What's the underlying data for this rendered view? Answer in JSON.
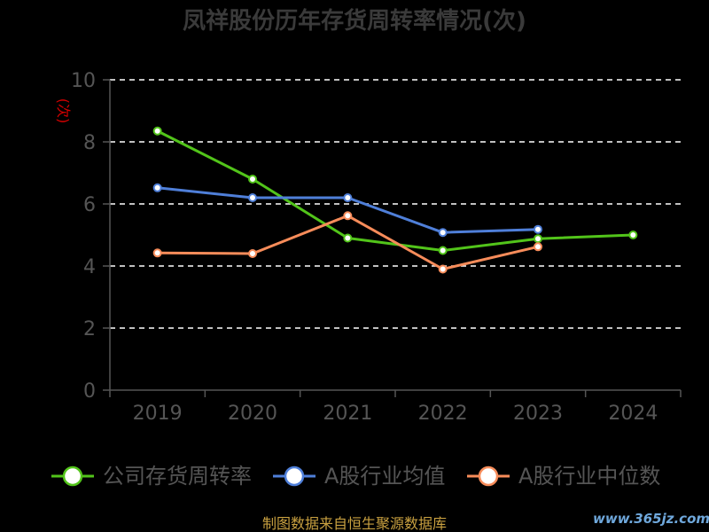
{
  "chart_data": {
    "type": "line",
    "title": "凤祥股份历年存货周转率情况(次)",
    "ylabel": "(次)",
    "xlabel": "",
    "categories": [
      "2019",
      "2020",
      "2021",
      "2022",
      "2023",
      "2024"
    ],
    "ylim": [
      0,
      10
    ],
    "yticks": [
      0,
      2,
      4,
      6,
      8,
      10
    ],
    "grid": true,
    "legend_position": "bottom",
    "series": [
      {
        "name": "公司存货周转率",
        "color": "#52c41a",
        "values": [
          8.35,
          6.8,
          4.9,
          4.5,
          4.88,
          5.0
        ]
      },
      {
        "name": "A股行业均值",
        "color": "#4f7fd9",
        "values": [
          6.52,
          6.2,
          6.2,
          5.08,
          5.18,
          null
        ]
      },
      {
        "name": "A股行业中位数",
        "color": "#f78c5a",
        "values": [
          4.42,
          4.4,
          5.62,
          3.9,
          4.62,
          null
        ]
      }
    ]
  },
  "footer": {
    "source": "制图数据来自恒生聚源数据库",
    "watermark": "www.365jz.com"
  }
}
